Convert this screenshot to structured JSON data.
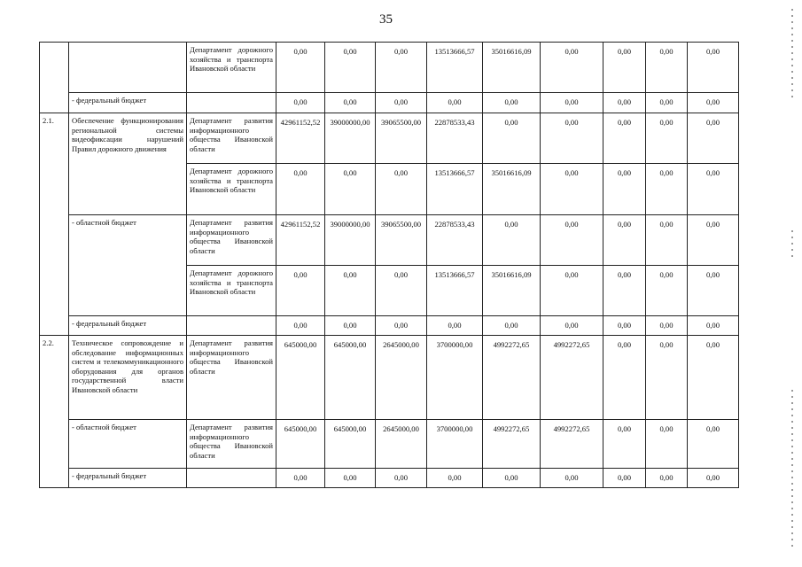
{
  "page_number": "35",
  "departments": {
    "road": "Департамент дорожного хозяйства и транспорта Ивановской области",
    "info": "Департамент развития информационного общества Ивановской области"
  },
  "rows": [
    {
      "no": "",
      "desc": "",
      "dept": "Департамент дорожного хозяйства и транспорта Ивановской области",
      "values": [
        "0,00",
        "0,00",
        "0,00",
        "13513666,57",
        "35016616,09",
        "0,00",
        "0,00",
        "0,00",
        "0,00"
      ]
    },
    {
      "desc": "- федеральный бюджет",
      "dept": "",
      "values": [
        "0,00",
        "0,00",
        "0,00",
        "0,00",
        "0,00",
        "0,00",
        "0,00",
        "0,00",
        "0,00"
      ]
    },
    {
      "no": "2.1.",
      "desc": "Обеспечение функционирования региональной системы видеофиксации нарушений Правил дорожного движения",
      "dept": "Департамент развития информационного общества Ивановской области",
      "values": [
        "42961152,52",
        "39000000,00",
        "39065500,00",
        "22878533,43",
        "0,00",
        "0,00",
        "0,00",
        "0,00",
        "0,00"
      ]
    },
    {
      "dept": "Департамент дорожного хозяйства и транспорта Ивановской области",
      "values": [
        "0,00",
        "0,00",
        "0,00",
        "13513666,57",
        "35016616,09",
        "0,00",
        "0,00",
        "0,00",
        "0,00"
      ]
    },
    {
      "desc": "- областной бюджет",
      "dept": "Департамент развития информационного общества Ивановской области",
      "values": [
        "42961152,52",
        "39000000,00",
        "39065500,00",
        "22878533,43",
        "0,00",
        "0,00",
        "0,00",
        "0,00",
        "0,00"
      ]
    },
    {
      "dept": "Департамент дорожного хозяйства и транспорта Ивановской области",
      "values": [
        "0,00",
        "0,00",
        "0,00",
        "13513666,57",
        "35016616,09",
        "0,00",
        "0,00",
        "0,00",
        "0,00"
      ]
    },
    {
      "desc": "- федеральный бюджет",
      "dept": "",
      "values": [
        "0,00",
        "0,00",
        "0,00",
        "0,00",
        "0,00",
        "0,00",
        "0,00",
        "0,00",
        "0,00"
      ]
    },
    {
      "no": "2.2.",
      "desc": "Техническое сопровождение и обследование информационных систем и телекоммуникационного оборудования для органов государственной власти Ивановской области",
      "dept": "Департамент развития информационного общества Ивановской области",
      "values": [
        "645000,00",
        "645000,00",
        "2645000,00",
        "3700000,00",
        "4992272,65",
        "4992272,65",
        "0,00",
        "0,00",
        "0,00"
      ]
    },
    {
      "desc": "- областной бюджет",
      "dept": "Департамент развития информационного общества Ивановской области",
      "values": [
        "645000,00",
        "645000,00",
        "2645000,00",
        "3700000,00",
        "4992272,65",
        "4992272,65",
        "0,00",
        "0,00",
        "0,00"
      ]
    },
    {
      "desc": "- федеральный бюджет",
      "dept": "",
      "values": [
        "0,00",
        "0,00",
        "0,00",
        "0,00",
        "0,00",
        "0,00",
        "0,00",
        "0,00",
        "0,00"
      ]
    }
  ]
}
